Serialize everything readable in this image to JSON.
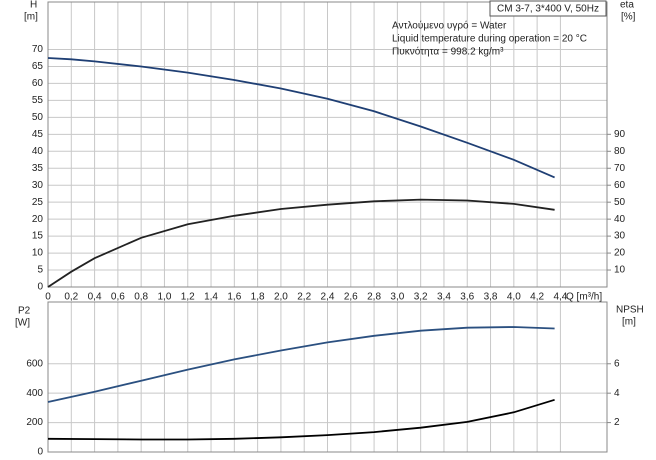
{
  "chart_data": [
    {
      "type": "line",
      "title": "CM 3-7, 3*400 V, 50Hz",
      "annotations": [
        "Αντλούμενο υγρό = Water",
        "Liquid temperature during operation = 20 °C",
        "Πυκνότητα = 998.2 kg/m³"
      ],
      "y_label": "H",
      "y_unit": "[m]",
      "y2_label": "eta",
      "y2_unit": "[%]",
      "x_label": "Q [m³/h]",
      "xlim": [
        0,
        4.8
      ],
      "xticks": [
        0,
        {
          "value": 0.2,
          "label": "0,2"
        },
        {
          "value": 0.4,
          "label": "0,4"
        },
        {
          "value": 0.6,
          "label": "0,6"
        },
        {
          "value": 0.8,
          "label": "0,8"
        },
        {
          "value": 1.0,
          "label": "1,0"
        },
        {
          "value": 1.2,
          "label": "1,2"
        },
        {
          "value": 1.4,
          "label": "1,4"
        },
        {
          "value": 1.6,
          "label": "1,6"
        },
        {
          "value": 1.8,
          "label": "1,8"
        },
        {
          "value": 2.0,
          "label": "2,0"
        },
        {
          "value": 2.2,
          "label": "2,2"
        },
        {
          "value": 2.4,
          "label": "2,4"
        },
        {
          "value": 2.6,
          "label": "2,6"
        },
        {
          "value": 2.8,
          "label": "2,8"
        },
        {
          "value": 3.0,
          "label": "3,0"
        },
        {
          "value": 3.2,
          "label": "3,2"
        },
        {
          "value": 3.4,
          "label": "3,4"
        },
        {
          "value": 3.6,
          "label": "3,6"
        },
        {
          "value": 3.8,
          "label": "3,8"
        },
        {
          "value": 4.0,
          "label": "4,0"
        },
        {
          "value": 4.2,
          "label": "4,2"
        },
        {
          "value": 4.4,
          "label": "4,4"
        }
      ],
      "ylim": [
        0,
        84
      ],
      "yticks": [
        0,
        5,
        10,
        15,
        20,
        25,
        30,
        35,
        40,
        45,
        50,
        55,
        60,
        65,
        70
      ],
      "y2lim": [
        0,
        168
      ],
      "y2ticks": [
        10,
        20,
        30,
        40,
        50,
        60,
        70,
        80,
        90
      ],
      "grid": true,
      "x": [
        0,
        0.2,
        0.4,
        0.8,
        1.2,
        1.6,
        2.0,
        2.4,
        2.8,
        3.2,
        3.6,
        4.0,
        4.35
      ],
      "series": [
        {
          "name": "H",
          "color": "#1f3f74",
          "values": [
            67.5,
            67.1,
            66.5,
            65,
            63.2,
            61,
            58.5,
            55.5,
            51.8,
            47.3,
            42.5,
            37.5,
            32.3
          ]
        },
        {
          "name": "eta",
          "color": "#222222",
          "axis": "y2",
          "values": [
            0,
            9,
            17,
            29,
            37,
            42,
            46,
            48.5,
            50.5,
            51.5,
            51,
            49,
            45.5
          ]
        }
      ]
    },
    {
      "type": "line",
      "y_label": "P2",
      "y_unit": "[W]",
      "y2_label": "NPSH",
      "y2_unit": "[m]",
      "xlim": [
        0,
        4.8
      ],
      "ylim": [
        0,
        1020
      ],
      "yticks": [
        0,
        200,
        400,
        600
      ],
      "y2lim": [
        0,
        10.2
      ],
      "y2ticks": [
        2,
        4,
        6
      ],
      "grid": true,
      "x": [
        0,
        0.4,
        0.8,
        1.2,
        1.6,
        2.0,
        2.4,
        2.8,
        3.2,
        3.6,
        4.0,
        4.35
      ],
      "series": [
        {
          "name": "P2",
          "color": "#2b5080",
          "values": [
            340,
            410,
            485,
            560,
            630,
            690,
            745,
            790,
            825,
            845,
            850,
            840
          ]
        },
        {
          "name": "NPSH",
          "color": "#000000",
          "axis": "y2",
          "values": [
            0.9,
            0.88,
            0.85,
            0.85,
            0.9,
            1.0,
            1.15,
            1.35,
            1.65,
            2.05,
            2.7,
            3.55
          ]
        }
      ]
    }
  ]
}
